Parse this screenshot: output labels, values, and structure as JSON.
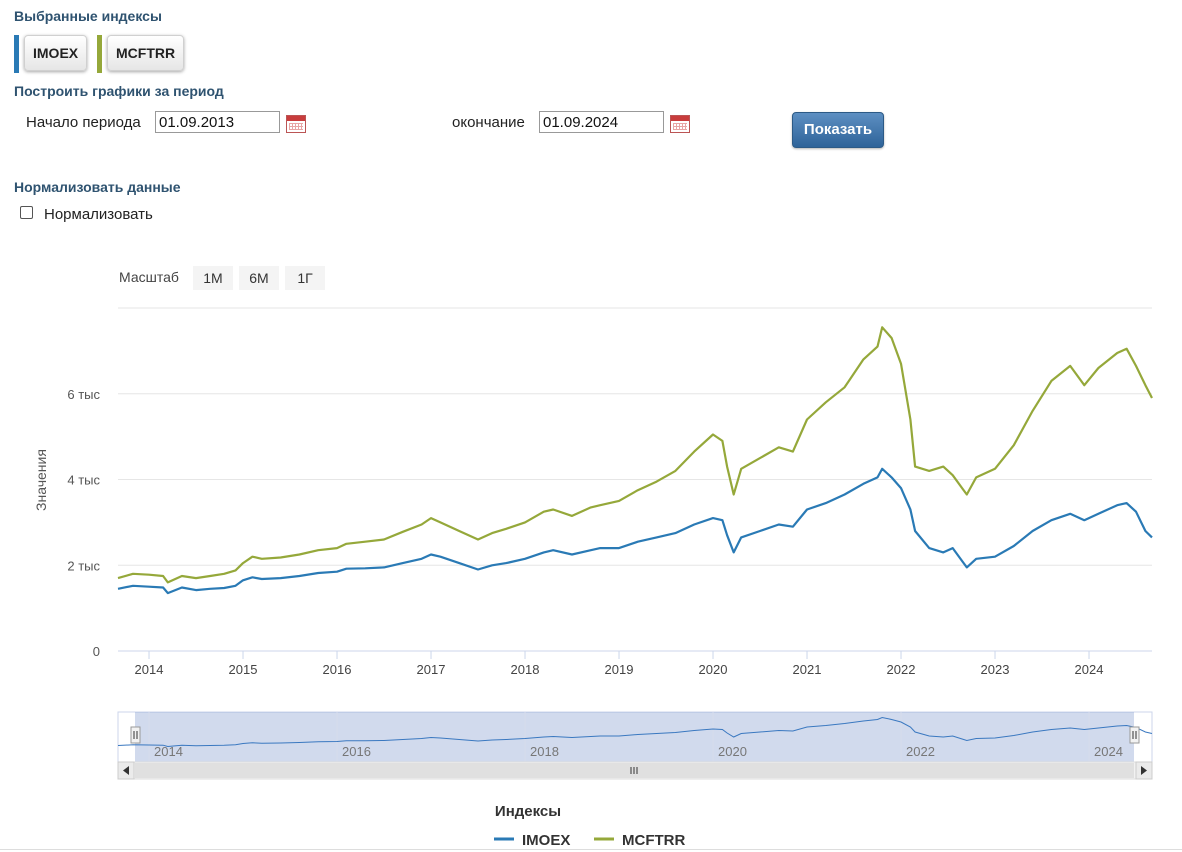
{
  "selected_indexes": {
    "title": "Выбранные индексы",
    "items": [
      {
        "label": "IMOEX",
        "color": "#2a7ab5"
      },
      {
        "label": "MCFTRR",
        "color": "#95a83a"
      }
    ]
  },
  "period": {
    "title": "Построить графики за период",
    "start_label": "Начало периода",
    "start_value": "01.09.2013",
    "end_label": "окончание",
    "end_value": "01.09.2024",
    "show_button": "Показать"
  },
  "normalize": {
    "title": "Нормализовать данные",
    "checkbox_label": "Нормализовать",
    "checked": false
  },
  "zoom": {
    "label": "Масштаб",
    "options": [
      "1М",
      "6М",
      "1Г"
    ]
  },
  "chart_data": {
    "type": "line",
    "ylabel": "Значения",
    "y_ticks": [
      "0",
      "2 тыс",
      "4 тыс",
      "6 тыс"
    ],
    "y_tick_values": [
      0,
      2000,
      4000,
      6000
    ],
    "ylim": [
      0,
      8000
    ],
    "x_ticks": [
      "2014",
      "2015",
      "2016",
      "2017",
      "2018",
      "2019",
      "2020",
      "2021",
      "2022",
      "2023",
      "2024"
    ],
    "xlim": [
      2013.67,
      2024.67
    ],
    "grid": true,
    "legend_title": "Индексы",
    "legend_position": "bottom",
    "navigator_ticks": [
      "2014",
      "2016",
      "2018",
      "2020",
      "2022",
      "2024"
    ],
    "series": [
      {
        "name": "IMOEX",
        "color": "#2a7ab5",
        "x": [
          2013.67,
          2013.83,
          2014.0,
          2014.15,
          2014.2,
          2014.35,
          2014.5,
          2014.65,
          2014.8,
          2014.92,
          2015.0,
          2015.1,
          2015.2,
          2015.4,
          2015.6,
          2015.8,
          2016.0,
          2016.1,
          2016.3,
          2016.5,
          2016.7,
          2016.9,
          2017.0,
          2017.1,
          2017.3,
          2017.5,
          2017.65,
          2017.8,
          2018.0,
          2018.2,
          2018.3,
          2018.5,
          2018.7,
          2018.8,
          2019.0,
          2019.2,
          2019.4,
          2019.6,
          2019.8,
          2020.0,
          2020.1,
          2020.15,
          2020.22,
          2020.3,
          2020.5,
          2020.7,
          2020.85,
          2021.0,
          2021.2,
          2021.4,
          2021.6,
          2021.75,
          2021.8,
          2021.9,
          2022.0,
          2022.1,
          2022.15,
          2022.3,
          2022.45,
          2022.55,
          2022.65,
          2022.7,
          2022.8,
          2023.0,
          2023.2,
          2023.4,
          2023.6,
          2023.8,
          2023.95,
          2024.1,
          2024.3,
          2024.4,
          2024.5,
          2024.6,
          2024.67
        ],
        "values": [
          1450,
          1520,
          1500,
          1480,
          1350,
          1480,
          1420,
          1450,
          1470,
          1520,
          1650,
          1720,
          1680,
          1700,
          1750,
          1820,
          1850,
          1920,
          1930,
          1950,
          2050,
          2150,
          2250,
          2200,
          2050,
          1900,
          2000,
          2050,
          2150,
          2300,
          2350,
          2250,
          2350,
          2400,
          2400,
          2550,
          2650,
          2750,
          2950,
          3100,
          3050,
          2700,
          2300,
          2650,
          2800,
          2950,
          2900,
          3300,
          3450,
          3650,
          3900,
          4050,
          4250,
          4050,
          3800,
          3300,
          2800,
          2400,
          2300,
          2400,
          2100,
          1950,
          2150,
          2200,
          2450,
          2800,
          3050,
          3200,
          3050,
          3200,
          3400,
          3450,
          3250,
          2800,
          2650
        ]
      },
      {
        "name": "MCFTRR",
        "color": "#95a83a",
        "x": [
          2013.67,
          2013.83,
          2014.0,
          2014.15,
          2014.2,
          2014.35,
          2014.5,
          2014.65,
          2014.8,
          2014.92,
          2015.0,
          2015.1,
          2015.2,
          2015.4,
          2015.6,
          2015.8,
          2016.0,
          2016.1,
          2016.3,
          2016.5,
          2016.7,
          2016.9,
          2017.0,
          2017.1,
          2017.3,
          2017.5,
          2017.65,
          2017.8,
          2018.0,
          2018.2,
          2018.3,
          2018.5,
          2018.7,
          2018.8,
          2019.0,
          2019.2,
          2019.4,
          2019.6,
          2019.8,
          2020.0,
          2020.1,
          2020.15,
          2020.22,
          2020.3,
          2020.5,
          2020.7,
          2020.85,
          2021.0,
          2021.2,
          2021.4,
          2021.6,
          2021.75,
          2021.8,
          2021.9,
          2022.0,
          2022.1,
          2022.15,
          2022.3,
          2022.45,
          2022.55,
          2022.65,
          2022.7,
          2022.8,
          2023.0,
          2023.2,
          2023.4,
          2023.6,
          2023.8,
          2023.95,
          2024.1,
          2024.3,
          2024.4,
          2024.5,
          2024.6,
          2024.67
        ],
        "values": [
          1700,
          1800,
          1780,
          1750,
          1600,
          1750,
          1700,
          1750,
          1800,
          1880,
          2050,
          2200,
          2150,
          2180,
          2250,
          2350,
          2400,
          2500,
          2550,
          2600,
          2780,
          2950,
          3100,
          3000,
          2800,
          2600,
          2750,
          2850,
          3000,
          3250,
          3300,
          3150,
          3350,
          3400,
          3500,
          3750,
          3950,
          4200,
          4650,
          5050,
          4900,
          4300,
          3650,
          4250,
          4500,
          4750,
          4650,
          5400,
          5800,
          6150,
          6800,
          7100,
          7550,
          7300,
          6700,
          5400,
          4300,
          4200,
          4300,
          4100,
          3800,
          3650,
          4050,
          4250,
          4800,
          5600,
          6300,
          6650,
          6200,
          6600,
          6950,
          7050,
          6650,
          6200,
          5900
        ]
      }
    ]
  }
}
